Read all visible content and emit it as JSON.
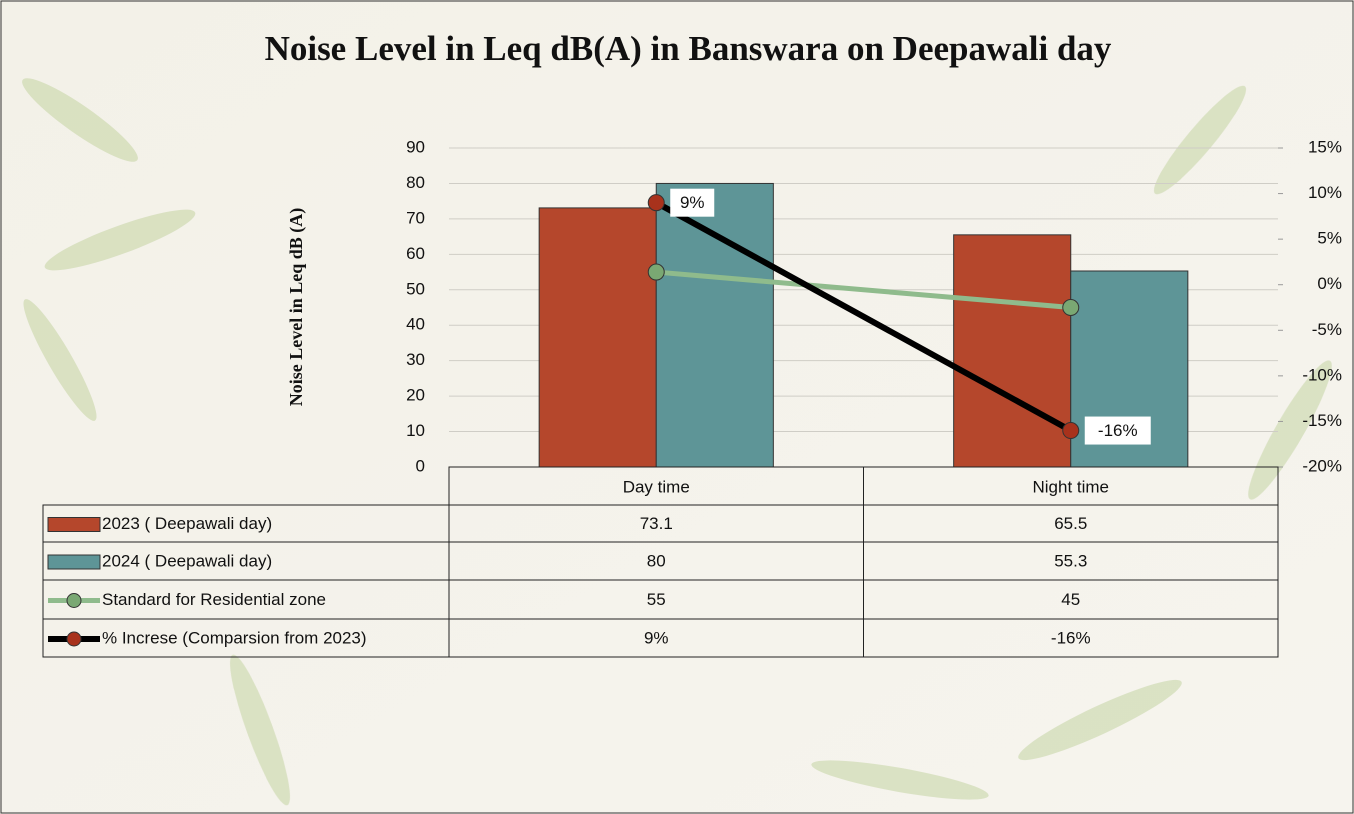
{
  "chart_data": {
    "type": "bar",
    "title": "Noise Level in Leq dB(A) in Banswara on Deepawali day",
    "y_label": "Noise Level in Leq dB (A)",
    "categories": [
      "Day time",
      "Night time"
    ],
    "series": [
      {
        "name": "2023 ( Deepawali day)",
        "type": "bar",
        "color": "#b5472c",
        "values": [
          73.1,
          65.5
        ]
      },
      {
        "name": "2024 ( Deepawali day)",
        "type": "bar",
        "color": "#5e9597",
        "values": [
          80,
          55.3
        ]
      },
      {
        "name": "Standard for Residential zone",
        "type": "line",
        "color": "#8fbb8c",
        "marker_color": "#7aa873",
        "values": [
          55,
          45
        ]
      },
      {
        "name": "% Increse (Comparsion from 2023)",
        "type": "line",
        "axis": "y2",
        "color": "#000000",
        "marker_color": "#a8321c",
        "values": [
          9,
          -16
        ],
        "value_labels": [
          "9%",
          "-16%"
        ]
      }
    ],
    "ylim": [
      0,
      90
    ],
    "yticks": [
      0,
      10,
      20,
      30,
      40,
      50,
      60,
      70,
      80,
      90
    ],
    "y2lim": [
      -20,
      15
    ],
    "y2ticks": [
      {
        "value": -20,
        "label": "-20%"
      },
      {
        "value": -15,
        "label": "-15%"
      },
      {
        "value": -10,
        "label": "-10%"
      },
      {
        "value": -5,
        "label": "-5%"
      },
      {
        "value": 0,
        "label": "0%"
      },
      {
        "value": 5,
        "label": "5%"
      },
      {
        "value": 10,
        "label": "10%"
      },
      {
        "value": 15,
        "label": "15%"
      }
    ],
    "grid": true
  }
}
